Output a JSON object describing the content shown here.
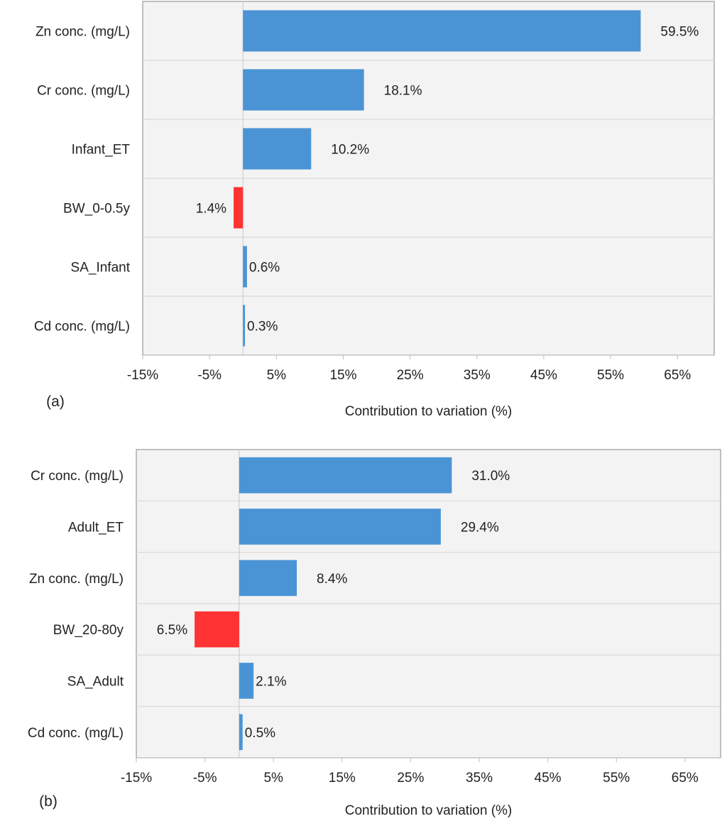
{
  "chart_data": [
    {
      "type": "bar",
      "orientation": "horizontal",
      "panel_label": "(a)",
      "xlabel": "Contribution to variation (%)",
      "xlim": [
        -15,
        70.5
      ],
      "xticks": [
        -15,
        -5,
        5,
        15,
        25,
        35,
        45,
        55,
        65
      ],
      "xtick_labels": [
        "-15%",
        "-5%",
        "5%",
        "15%",
        "25%",
        "35%",
        "45%",
        "55%",
        "65%"
      ],
      "categories": [
        "Zn conc. (mg/L)",
        "Cr conc. (mg/L)",
        "Infant_ET",
        "BW_0-0.5y",
        "SA_Infant",
        "Cd conc. (mg/L)"
      ],
      "values": [
        59.5,
        18.1,
        10.2,
        -1.4,
        0.6,
        0.3
      ],
      "value_labels": [
        "59.5%",
        "18.1%",
        "10.2%",
        "1.4%",
        "0.6%",
        "0.3%"
      ]
    },
    {
      "type": "bar",
      "orientation": "horizontal",
      "panel_label": "(b)",
      "xlabel": "Contribution to variation (%)",
      "xlim": [
        -15,
        70.2
      ],
      "xticks": [
        -15,
        -5,
        5,
        15,
        25,
        35,
        45,
        55,
        65
      ],
      "xtick_labels": [
        "-15%",
        "-5%",
        "5%",
        "15%",
        "25%",
        "35%",
        "45%",
        "55%",
        "65%"
      ],
      "categories": [
        "Cr conc. (mg/L)",
        "Adult_ET",
        "Zn conc. (mg/L)",
        "BW_20-80y",
        "SA_Adult",
        "Cd conc. (mg/L)"
      ],
      "values": [
        31.0,
        29.4,
        8.4,
        -6.5,
        2.1,
        0.5
      ],
      "value_labels": [
        "31.0%",
        "29.4%",
        "8.4%",
        "6.5%",
        "2.1%",
        "0.5%"
      ]
    }
  ],
  "colors": {
    "positive": "#4a94d6",
    "negative": "#ff3333",
    "plot_bg": "#f3f3f3",
    "grid": "#d9d9d9",
    "frame": "#999999"
  }
}
